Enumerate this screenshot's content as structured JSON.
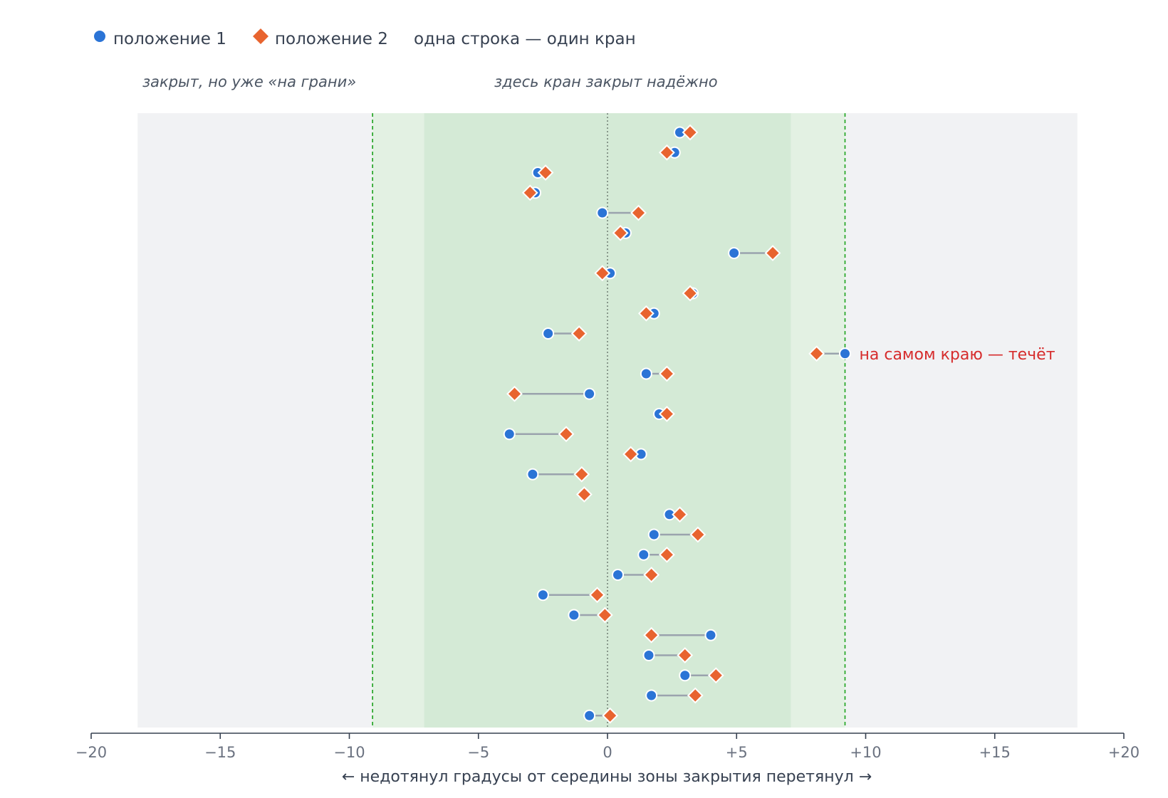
{
  "legend": {
    "series1_label": "положение 1",
    "series2_label": "положение 2",
    "description": "одна строка — один кран"
  },
  "annotations": {
    "outer_zone_label": "закрыт, но уже «на грани»",
    "inner_zone_label": "здесь кран закрыт надёжно",
    "outlier_label": "на самом краю — течёт"
  },
  "colors": {
    "series1": "#2b74d6",
    "series2": "#e8642f",
    "connector": "#9aa3ad",
    "outer_zone": "#e3f1e3",
    "inner_zone": "#d4ead6",
    "plot_background": "#f1f2f4",
    "zone_edge": "#1aa11a",
    "callout": "#d62c2c"
  },
  "chart_data": {
    "type": "scatter",
    "subtype": "dumbbell",
    "title": "",
    "xlabel": "← недотянул градусы от середины зоны закрытия перетянул →",
    "ylabel": "",
    "xlim": [
      -20,
      20
    ],
    "x_ticks": [
      -20,
      -15,
      -10,
      -5,
      0,
      5,
      10,
      15,
      20
    ],
    "x_tick_labels": [
      "−20",
      "−15",
      "−10",
      "−5",
      "0",
      "+5",
      "+10",
      "+15",
      "+20"
    ],
    "grid": false,
    "legend_position": "top-left",
    "zones": {
      "plot_range": [
        -18.2,
        18.2
      ],
      "outer_zone": [
        -9.1,
        9.2
      ],
      "inner_zone": [
        -7.1,
        7.1
      ],
      "center_line": 0
    },
    "series": [
      {
        "name": "положение 1",
        "marker": "circle",
        "values": [
          2.8,
          2.6,
          -2.7,
          -2.8,
          -0.2,
          0.7,
          4.9,
          0.1,
          3.3,
          1.8,
          -2.3,
          9.2,
          1.5,
          -0.7,
          2.0,
          -3.8,
          1.3,
          -2.9,
          -0.9,
          2.4,
          1.8,
          1.4,
          0.4,
          -2.5,
          -1.3,
          4.0,
          1.6,
          3.0,
          1.7,
          -0.7
        ]
      },
      {
        "name": "положение 2",
        "marker": "diamond",
        "values": [
          3.2,
          2.3,
          -2.4,
          -3.0,
          1.2,
          0.5,
          6.4,
          -0.2,
          3.2,
          1.5,
          -1.1,
          8.1,
          2.3,
          -3.6,
          2.3,
          -1.6,
          0.9,
          -1.0,
          -0.9,
          2.8,
          3.5,
          2.3,
          1.7,
          -0.4,
          -0.1,
          1.7,
          3.0,
          4.2,
          3.4,
          0.1
        ]
      }
    ],
    "outlier_row": 11
  }
}
